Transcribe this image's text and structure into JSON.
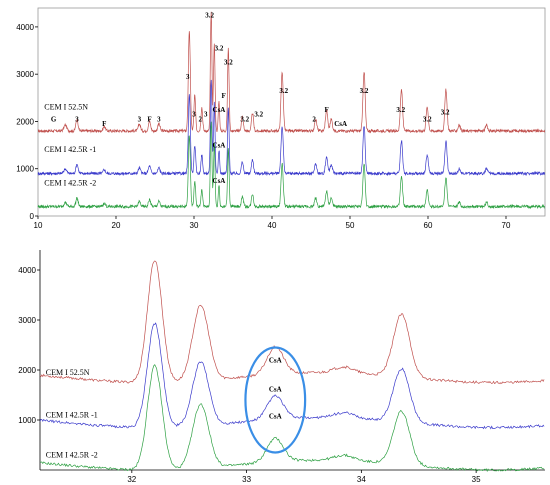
{
  "chart_data": [
    {
      "type": "line",
      "title": "",
      "xlabel": "",
      "ylabel": "",
      "xlim": [
        10,
        75
      ],
      "ylim": [
        0,
        4400
      ],
      "x_ticks": [
        10,
        20,
        30,
        40,
        50,
        60,
        70
      ],
      "y_ticks": [
        0,
        1000,
        2000,
        3000,
        4000
      ],
      "series": [
        {
          "name": "CEM I 52.5N",
          "color": "#c0504d",
          "baseline": 1800
        },
        {
          "name": "CEM I 42.5R -1",
          "color": "#3a3acb",
          "baseline": 900
        },
        {
          "name": "CEM I 42.5R -2",
          "color": "#2ea043",
          "baseline": 200
        }
      ],
      "peaks": [
        {
          "x": 13.5,
          "h": 0.05,
          "w": 0.25
        },
        {
          "x": 15.0,
          "h": 0.1,
          "w": 0.2
        },
        {
          "x": 18.5,
          "h": 0.04,
          "w": 0.2
        },
        {
          "x": 23.0,
          "h": 0.06,
          "w": 0.2
        },
        {
          "x": 24.3,
          "h": 0.08,
          "w": 0.2
        },
        {
          "x": 25.5,
          "h": 0.06,
          "w": 0.2
        },
        {
          "x": 29.4,
          "h": 0.85,
          "w": 0.18
        },
        {
          "x": 30.1,
          "h": 0.3,
          "w": 0.15
        },
        {
          "x": 31.0,
          "h": 0.2,
          "w": 0.15
        },
        {
          "x": 32.2,
          "h": 1.0,
          "w": 0.14
        },
        {
          "x": 32.6,
          "h": 0.75,
          "w": 0.14
        },
        {
          "x": 33.2,
          "h": 0.25,
          "w": 0.12
        },
        {
          "x": 34.4,
          "h": 0.7,
          "w": 0.14
        },
        {
          "x": 36.2,
          "h": 0.12,
          "w": 0.18
        },
        {
          "x": 37.5,
          "h": 0.15,
          "w": 0.18
        },
        {
          "x": 41.3,
          "h": 0.5,
          "w": 0.2
        },
        {
          "x": 45.6,
          "h": 0.1,
          "w": 0.2
        },
        {
          "x": 47.0,
          "h": 0.18,
          "w": 0.2
        },
        {
          "x": 47.6,
          "h": 0.1,
          "w": 0.2
        },
        {
          "x": 51.8,
          "h": 0.5,
          "w": 0.2
        },
        {
          "x": 56.6,
          "h": 0.35,
          "w": 0.2
        },
        {
          "x": 59.9,
          "h": 0.2,
          "w": 0.2
        },
        {
          "x": 62.3,
          "h": 0.35,
          "w": 0.2
        },
        {
          "x": 64.0,
          "h": 0.05,
          "w": 0.2
        },
        {
          "x": 67.5,
          "h": 0.05,
          "w": 0.2
        }
      ],
      "peak_labels": [
        {
          "x": 12.0,
          "y": 2000,
          "text": "G"
        },
        {
          "x": 15.0,
          "y": 2000,
          "text": "3"
        },
        {
          "x": 18.5,
          "y": 1900,
          "text": "F"
        },
        {
          "x": 23.0,
          "y": 2000,
          "text": "3"
        },
        {
          "x": 24.3,
          "y": 2000,
          "text": "F"
        },
        {
          "x": 25.5,
          "y": 2000,
          "text": "3"
        },
        {
          "x": 29.2,
          "y": 2900,
          "text": "3"
        },
        {
          "x": 30.0,
          "y": 2100,
          "text": "3"
        },
        {
          "x": 30.8,
          "y": 2000,
          "text": "2"
        },
        {
          "x": 31.5,
          "y": 2100,
          "text": "3"
        },
        {
          "x": 32.0,
          "y": 4200,
          "text": "3.2"
        },
        {
          "x": 33.2,
          "y": 3500,
          "text": "3.2"
        },
        {
          "x": 33.8,
          "y": 2500,
          "text": "F"
        },
        {
          "x": 33.2,
          "y": 2200,
          "text": "CsA"
        },
        {
          "x": 34.4,
          "y": 3200,
          "text": "3.2"
        },
        {
          "x": 36.5,
          "y": 2000,
          "text": "3.2"
        },
        {
          "x": 38.3,
          "y": 2100,
          "text": "3.2"
        },
        {
          "x": 41.5,
          "y": 2600,
          "text": "3.2"
        },
        {
          "x": 45.4,
          "y": 2000,
          "text": "2"
        },
        {
          "x": 47.0,
          "y": 2200,
          "text": "F"
        },
        {
          "x": 48.8,
          "y": 1900,
          "text": "CsA"
        },
        {
          "x": 51.8,
          "y": 2600,
          "text": "3.2"
        },
        {
          "x": 56.5,
          "y": 2200,
          "text": "3.2"
        },
        {
          "x": 59.9,
          "y": 2000,
          "text": "3.2"
        },
        {
          "x": 62.2,
          "y": 2150,
          "text": "3.2"
        }
      ],
      "csa_inner_labels": [
        {
          "x": 33.2,
          "y": 1450,
          "text": "CsA"
        },
        {
          "x": 33.2,
          "y": 700,
          "text": "CsA"
        }
      ]
    },
    {
      "type": "line",
      "title": "",
      "xlabel": "",
      "ylabel": "",
      "xlim": [
        31.2,
        35.6
      ],
      "ylim": [
        0,
        4400
      ],
      "x_ticks": [
        32,
        33,
        34,
        35
      ],
      "y_ticks": [
        1000,
        2000,
        3000,
        4000
      ],
      "series": [
        {
          "name": "CEM I 52.5N",
          "color": "#c0504d",
          "baseline": 1850
        },
        {
          "name": "CEM I 42.5R -1",
          "color": "#3a3acb",
          "baseline": 950
        },
        {
          "name": "CEM I 42.5R -2",
          "color": "#2ea043",
          "baseline": 100
        }
      ],
      "peaks": [
        {
          "x": 32.2,
          "h": 2450,
          "w": 0.09
        },
        {
          "x": 32.6,
          "h": 1500,
          "w": 0.1
        },
        {
          "x": 33.25,
          "h": 550,
          "w": 0.1
        },
        {
          "x": 33.85,
          "h": 120,
          "w": 0.12
        },
        {
          "x": 34.35,
          "h": 1250,
          "w": 0.1
        }
      ],
      "annotations": [
        {
          "x": 33.25,
          "y": 2150,
          "text": "CsA"
        },
        {
          "x": 33.25,
          "y": 1570,
          "text": "CsA"
        },
        {
          "x": 33.25,
          "y": 1030,
          "text": "CsA"
        }
      ],
      "highlight_ellipse": {
        "cx": 33.25,
        "cy": 1400,
        "rx": 0.26,
        "ry": 1050,
        "color": "#3a8ee6"
      }
    }
  ]
}
